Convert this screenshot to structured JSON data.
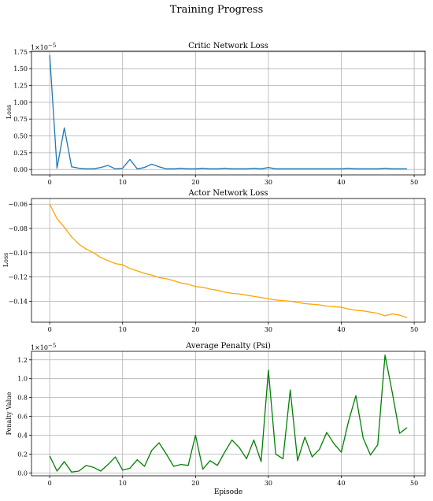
{
  "figure": {
    "title": "Training Progress"
  },
  "chart_data": [
    {
      "type": "line",
      "title": "Critic Network Loss",
      "xlabel": "",
      "ylabel": "Loss",
      "scale_label": "1e-5",
      "xlim": [
        -2.5,
        51.5
      ],
      "ylim": [
        -0.08,
        1.76
      ],
      "xticks": [
        0,
        10,
        20,
        30,
        40,
        50
      ],
      "yticks": [
        0.0,
        0.25,
        0.5,
        0.75,
        1.0,
        1.25,
        1.5,
        1.75
      ],
      "ytick_labels": [
        "0.00",
        "0.25",
        "0.50",
        "0.75",
        "1.00",
        "1.25",
        "1.50",
        "1.75"
      ],
      "grid": true,
      "color": "#1f77b4",
      "x": [
        0,
        1,
        2,
        3,
        4,
        5,
        6,
        7,
        8,
        9,
        10,
        11,
        12,
        13,
        14,
        15,
        16,
        17,
        18,
        19,
        20,
        21,
        22,
        23,
        24,
        25,
        26,
        27,
        28,
        29,
        30,
        31,
        32,
        33,
        34,
        35,
        36,
        37,
        38,
        39,
        40,
        41,
        42,
        43,
        44,
        45,
        46,
        47,
        48,
        49
      ],
      "values": [
        1.7,
        0.02,
        0.62,
        0.04,
        0.02,
        0.01,
        0.01,
        0.03,
        0.06,
        0.01,
        0.02,
        0.15,
        0.01,
        0.03,
        0.08,
        0.04,
        0.01,
        0.01,
        0.02,
        0.01,
        0.01,
        0.02,
        0.01,
        0.01,
        0.02,
        0.01,
        0.01,
        0.01,
        0.02,
        0.01,
        0.03,
        0.01,
        0.01,
        0.01,
        0.01,
        0.01,
        0.01,
        0.01,
        0.01,
        0.01,
        0.01,
        0.02,
        0.01,
        0.01,
        0.01,
        0.01,
        0.02,
        0.01,
        0.01,
        0.01
      ]
    },
    {
      "type": "line",
      "title": "Actor Network Loss",
      "xlabel": "",
      "ylabel": "Loss",
      "xlim": [
        -2.5,
        51.5
      ],
      "ylim": [
        -0.1573,
        -0.0553
      ],
      "xticks": [
        0,
        10,
        20,
        30,
        40,
        50
      ],
      "yticks": [
        -0.06,
        -0.08,
        -0.1,
        -0.12,
        -0.14
      ],
      "ytick_labels": [
        "−0.06",
        "−0.08",
        "−0.10",
        "−0.12",
        "−0.14"
      ],
      "grid": true,
      "color": "#ffa500",
      "x": [
        0,
        1,
        2,
        3,
        4,
        5,
        6,
        7,
        8,
        9,
        10,
        11,
        12,
        13,
        14,
        15,
        16,
        17,
        18,
        19,
        20,
        21,
        22,
        23,
        24,
        25,
        26,
        27,
        28,
        29,
        30,
        31,
        32,
        33,
        34,
        35,
        36,
        37,
        38,
        39,
        40,
        41,
        42,
        43,
        44,
        45,
        46,
        47,
        48,
        49
      ],
      "values": [
        -0.06,
        -0.072,
        -0.079,
        -0.087,
        -0.093,
        -0.097,
        -0.1,
        -0.104,
        -0.1065,
        -0.109,
        -0.11,
        -0.113,
        -0.115,
        -0.117,
        -0.1185,
        -0.1205,
        -0.1215,
        -0.123,
        -0.125,
        -0.126,
        -0.128,
        -0.1285,
        -0.13,
        -0.131,
        -0.1325,
        -0.1335,
        -0.134,
        -0.135,
        -0.136,
        -0.137,
        -0.138,
        -0.139,
        -0.1395,
        -0.14,
        -0.141,
        -0.142,
        -0.1425,
        -0.143,
        -0.144,
        -0.1445,
        -0.145,
        -0.1465,
        -0.1475,
        -0.148,
        -0.149,
        -0.15,
        -0.152,
        -0.1505,
        -0.1515,
        -0.1535
      ]
    },
    {
      "type": "line",
      "title": "Average Penalty (Psi)",
      "xlabel": "Episode",
      "ylabel": "Penalty Value",
      "scale_label": "1e-5",
      "xlim": [
        -2.5,
        51.5
      ],
      "ylim": [
        -0.03,
        1.29
      ],
      "xticks": [
        0,
        10,
        20,
        30,
        40,
        50
      ],
      "yticks": [
        0.0,
        0.2,
        0.4,
        0.6,
        0.8,
        1.0,
        1.2
      ],
      "ytick_labels": [
        "0.0",
        "0.2",
        "0.4",
        "0.6",
        "0.8",
        "1.0",
        "1.2"
      ],
      "grid": true,
      "color": "#008000",
      "x": [
        0,
        1,
        2,
        3,
        4,
        5,
        6,
        7,
        8,
        9,
        10,
        11,
        12,
        13,
        14,
        15,
        16,
        17,
        18,
        19,
        20,
        21,
        22,
        23,
        24,
        25,
        26,
        27,
        28,
        29,
        30,
        31,
        32,
        33,
        34,
        35,
        36,
        37,
        38,
        39,
        40,
        41,
        42,
        43,
        44,
        45,
        46,
        47,
        48,
        49
      ],
      "values": [
        0.18,
        0.02,
        0.12,
        0.01,
        0.02,
        0.08,
        0.06,
        0.02,
        0.09,
        0.17,
        0.03,
        0.05,
        0.14,
        0.07,
        0.24,
        0.32,
        0.2,
        0.07,
        0.09,
        0.08,
        0.4,
        0.04,
        0.13,
        0.08,
        0.22,
        0.35,
        0.27,
        0.15,
        0.35,
        0.12,
        1.09,
        0.2,
        0.15,
        0.88,
        0.13,
        0.38,
        0.17,
        0.25,
        0.43,
        0.31,
        0.22,
        0.55,
        0.82,
        0.37,
        0.19,
        0.3,
        1.25,
        0.85,
        0.42,
        0.48
      ]
    }
  ]
}
